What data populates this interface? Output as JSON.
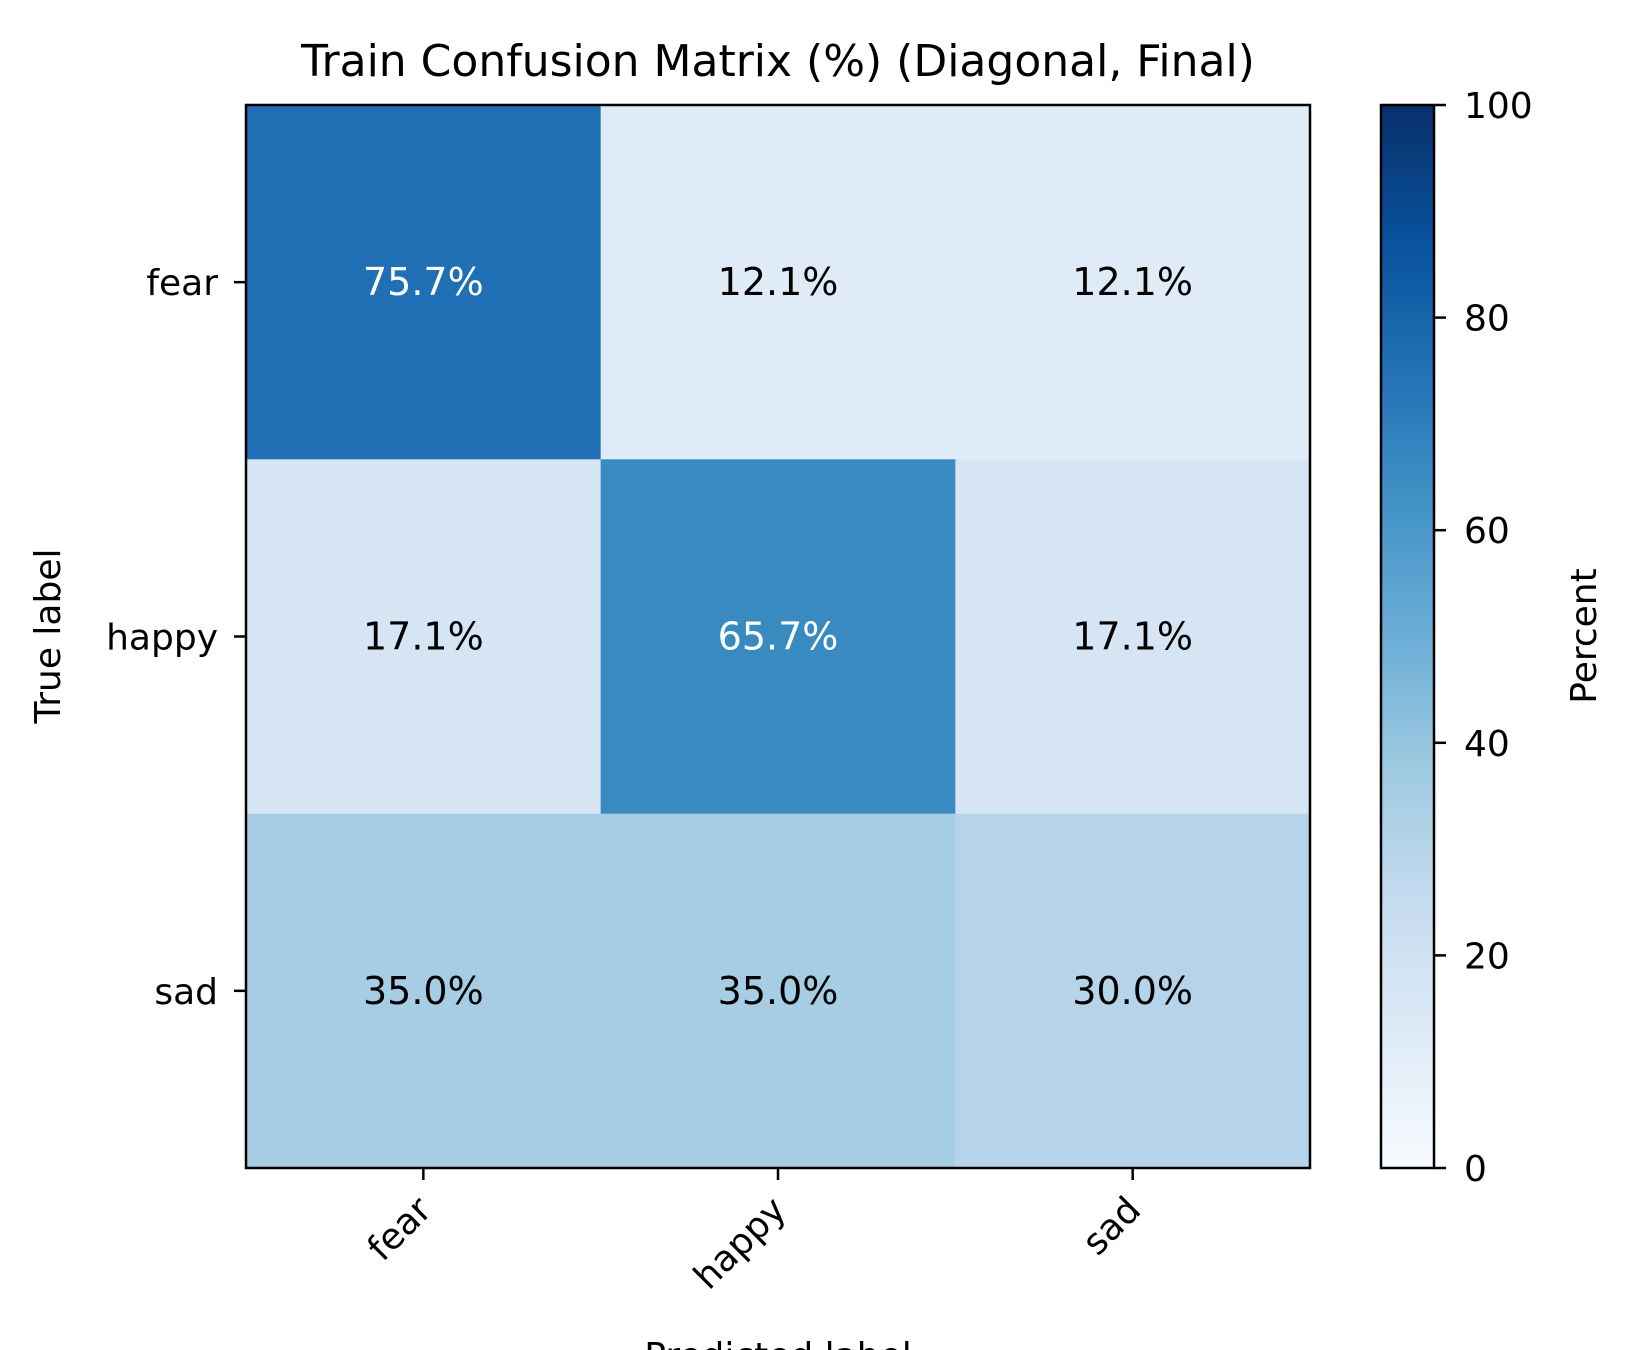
{
  "chart_data": {
    "type": "heatmap",
    "title": "Train Confusion Matrix (%) (Diagonal, Final)",
    "xlabel": "Predicted label",
    "ylabel": "True label",
    "x_categories": [
      "fear",
      "happy",
      "sad"
    ],
    "y_categories": [
      "fear",
      "happy",
      "sad"
    ],
    "values": [
      [
        75.7,
        12.1,
        12.1
      ],
      [
        17.1,
        65.7,
        17.1
      ],
      [
        35.0,
        35.0,
        30.0
      ]
    ],
    "cell_labels": [
      [
        "75.7%",
        "12.1%",
        "12.1%"
      ],
      [
        "17.1%",
        "65.7%",
        "17.1%"
      ],
      [
        "35.0%",
        "35.0%",
        "30.0%"
      ]
    ],
    "colormap": "Blues",
    "vmin": 0,
    "vmax": 100,
    "colorbar": {
      "label": "Percent",
      "ticks": [
        0,
        20,
        40,
        60,
        80,
        100
      ]
    },
    "colors": {
      "text_dark": "#000000",
      "text_light": "#ffffff"
    }
  }
}
